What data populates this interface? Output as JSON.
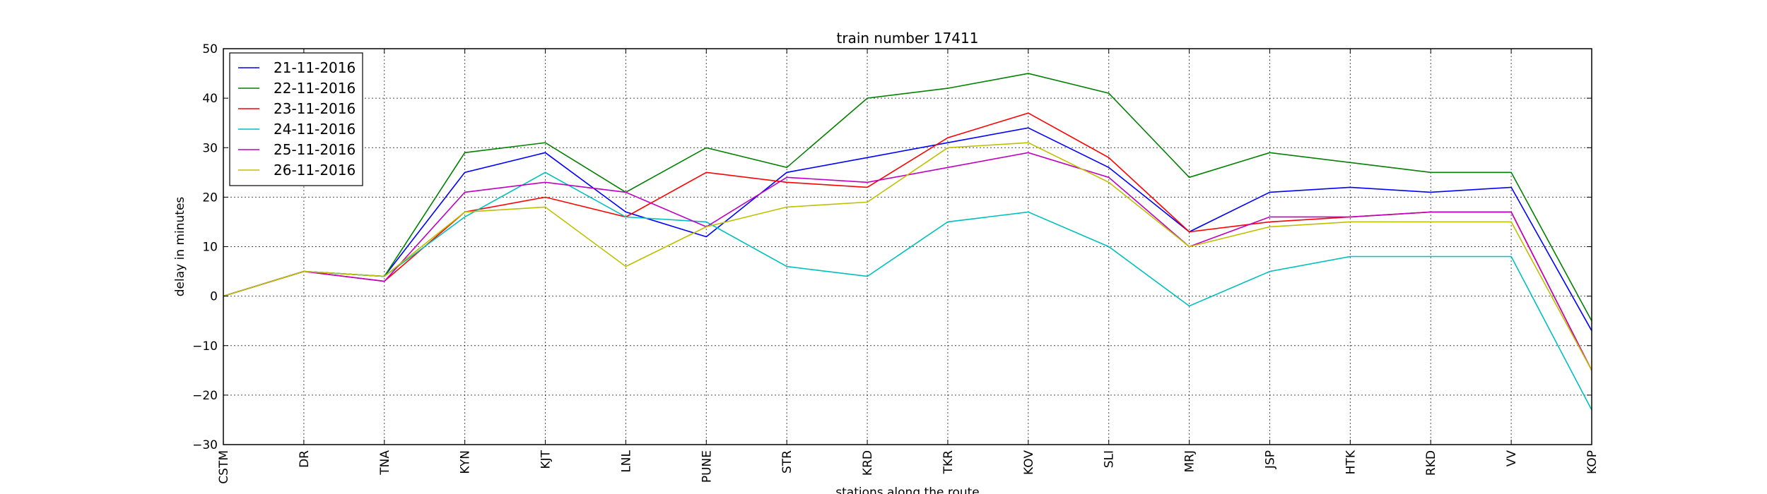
{
  "chart_data": {
    "type": "line",
    "title": "train number 17411",
    "xlabel": "stations along the route",
    "ylabel": "delay in minutes",
    "categories": [
      "CSTM",
      "DR",
      "TNA",
      "KYN",
      "KJT",
      "LNL",
      "PUNE",
      "STR",
      "KRD",
      "TKR",
      "KOV",
      "SLI",
      "MRJ",
      "JSP",
      "HTK",
      "RKD",
      "VV",
      "KOP"
    ],
    "ylim": [
      -30,
      50
    ],
    "yticks": [
      -30,
      -20,
      -10,
      0,
      10,
      20,
      30,
      40,
      50
    ],
    "ytick_labels": [
      "−30",
      "−20",
      "−10",
      "0",
      "10",
      "20",
      "30",
      "40",
      "50"
    ],
    "grid": true,
    "legend_position": "top-left",
    "series": [
      {
        "name": "21-11-2016",
        "color": "#0000ff",
        "values": [
          0,
          5,
          4,
          25,
          29,
          17,
          12,
          25,
          28,
          31,
          34,
          26,
          13,
          21,
          22,
          21,
          22,
          -7
        ]
      },
      {
        "name": "22-11-2016",
        "color": "#008000",
        "values": [
          0,
          5,
          4,
          29,
          31,
          21,
          30,
          26,
          40,
          42,
          45,
          41,
          24,
          29,
          27,
          25,
          25,
          -5
        ]
      },
      {
        "name": "23-11-2016",
        "color": "#ff0000",
        "values": [
          0,
          5,
          3,
          17,
          20,
          16,
          25,
          23,
          22,
          32,
          37,
          28,
          13,
          15,
          16,
          17,
          17,
          -15
        ]
      },
      {
        "name": "24-11-2016",
        "color": "#00bfbf",
        "values": [
          0,
          5,
          4,
          16,
          25,
          16,
          15,
          6,
          4,
          15,
          17,
          10,
          -2,
          5,
          8,
          8,
          8,
          -23
        ]
      },
      {
        "name": "25-11-2016",
        "color": "#bf00bf",
        "values": [
          0,
          5,
          3,
          21,
          23,
          21,
          14,
          24,
          23,
          26,
          29,
          24,
          10,
          16,
          16,
          17,
          17,
          -15
        ]
      },
      {
        "name": "26-11-2016",
        "color": "#bfbf00",
        "values": [
          0,
          5,
          4,
          17,
          18,
          6,
          14,
          18,
          19,
          30,
          31,
          23,
          10,
          14,
          15,
          15,
          15,
          -15
        ]
      }
    ]
  }
}
